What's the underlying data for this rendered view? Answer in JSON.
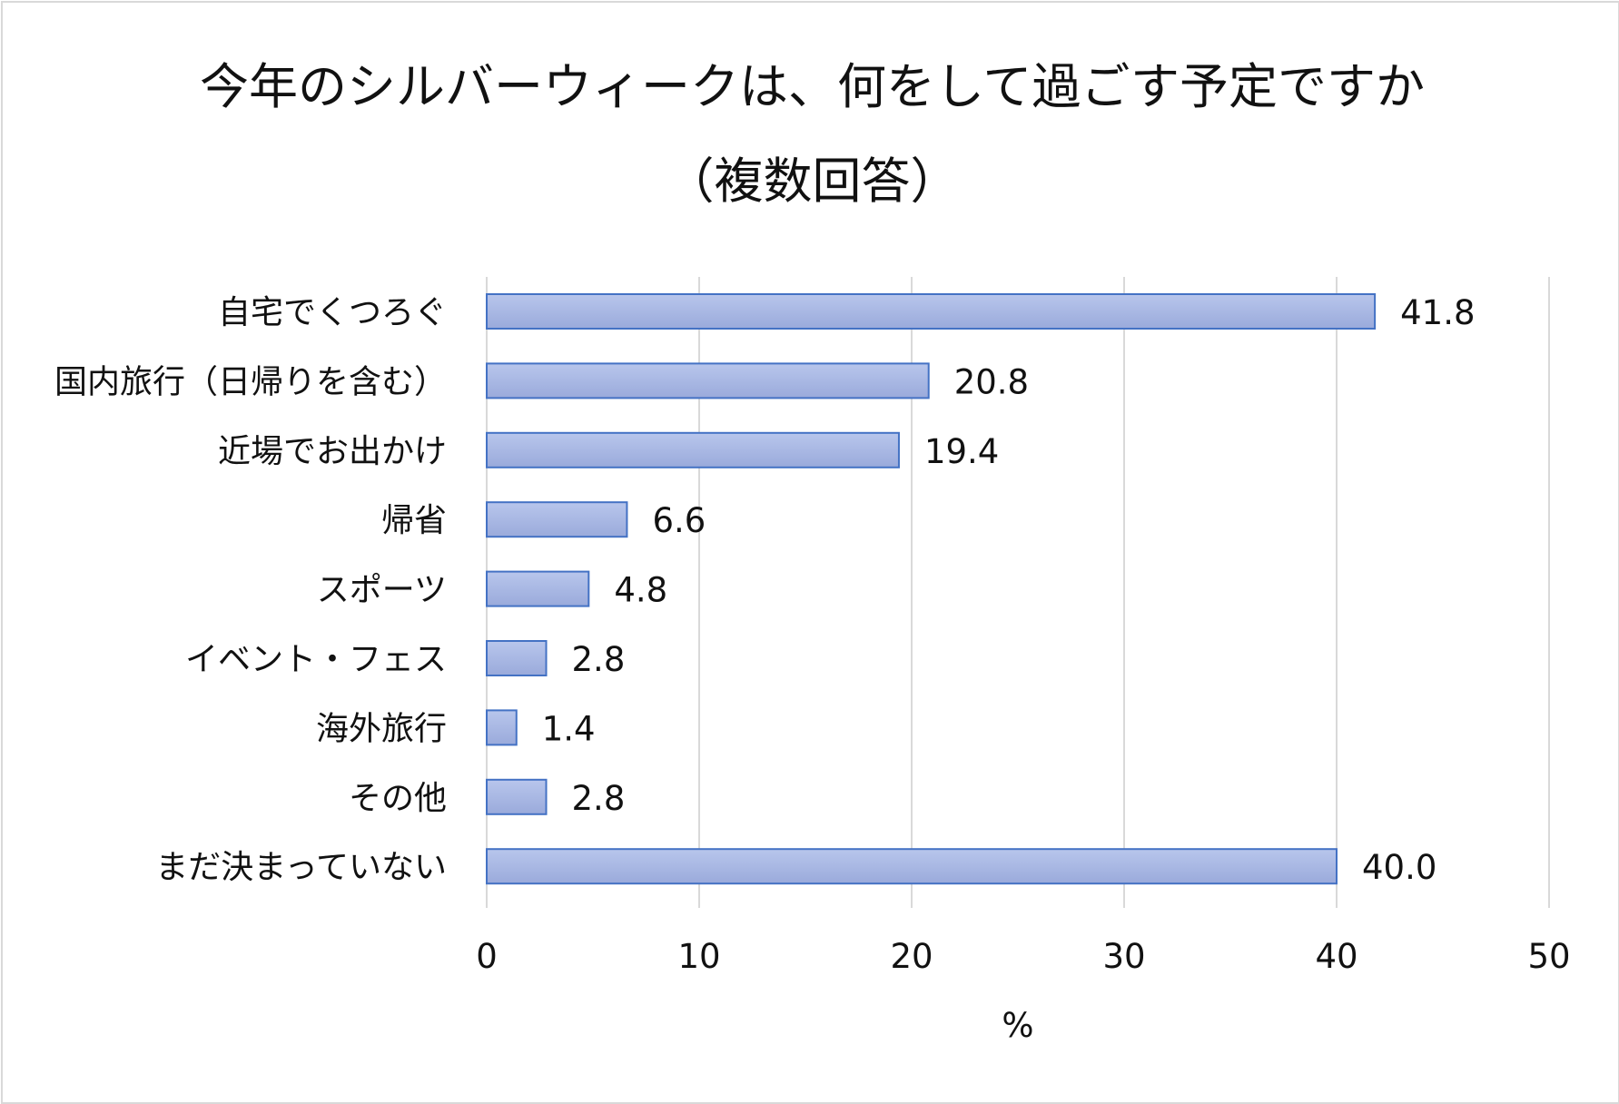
{
  "chart_data": {
    "type": "bar",
    "orientation": "horizontal",
    "title": "今年のシルバーウィークは、何をして過ごす予定ですか",
    "subtitle": "（複数回答）",
    "categories": [
      "自宅でくつろぐ",
      "国内旅行（日帰りを含む）",
      "近場でお出かけ",
      "帰省",
      "スポーツ",
      "イベント・フェス",
      "海外旅行",
      "その他",
      "まだ決まっていない"
    ],
    "values": [
      41.8,
      20.8,
      19.4,
      6.6,
      4.8,
      2.8,
      1.4,
      2.8,
      40.0
    ],
    "value_labels": [
      "41.8",
      "20.8",
      "19.4",
      "6.6",
      "4.8",
      "2.8",
      "1.4",
      "2.8",
      "40.0"
    ],
    "xlabel": "%",
    "ylabel": "",
    "xlim": [
      0,
      50
    ],
    "xticks": [
      0,
      10,
      20,
      30,
      40,
      50
    ],
    "grid": true,
    "bar_color": "#a9b8e3",
    "bar_edge_color": "#4472c4",
    "grid_color": "#d9d9d9"
  }
}
